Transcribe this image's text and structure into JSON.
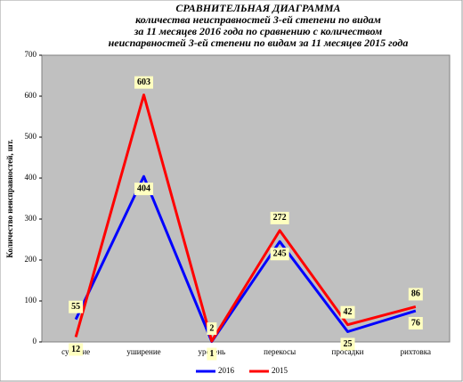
{
  "chart_data": {
    "type": "line",
    "title": [
      "СРАВНИТЕЛЬНАЯ ДИАГРАММА",
      "количества неисправностей 3-ей степени по видам",
      "за 11 месяцев 2016 года по сравнению с количеством",
      "неиспарвностей 3-ей степени по видам за 11 месяцев 2015 года"
    ],
    "y_label": "Количество неисправностей, шт.",
    "categories": [
      "сужение",
      "уширение",
      "уровень",
      "перекосы",
      "просадки",
      "рихтовка"
    ],
    "series": [
      {
        "name": "2016",
        "color": "#0000ff",
        "values": [
          55,
          404,
          1,
          245,
          25,
          76
        ]
      },
      {
        "name": "2015",
        "color": "#ff0000",
        "values": [
          12,
          603,
          2,
          272,
          42,
          86
        ]
      }
    ],
    "ylim": [
      0,
      700
    ],
    "yticks": [
      0,
      100,
      200,
      300,
      400,
      500,
      600,
      700
    ],
    "grid": false
  }
}
